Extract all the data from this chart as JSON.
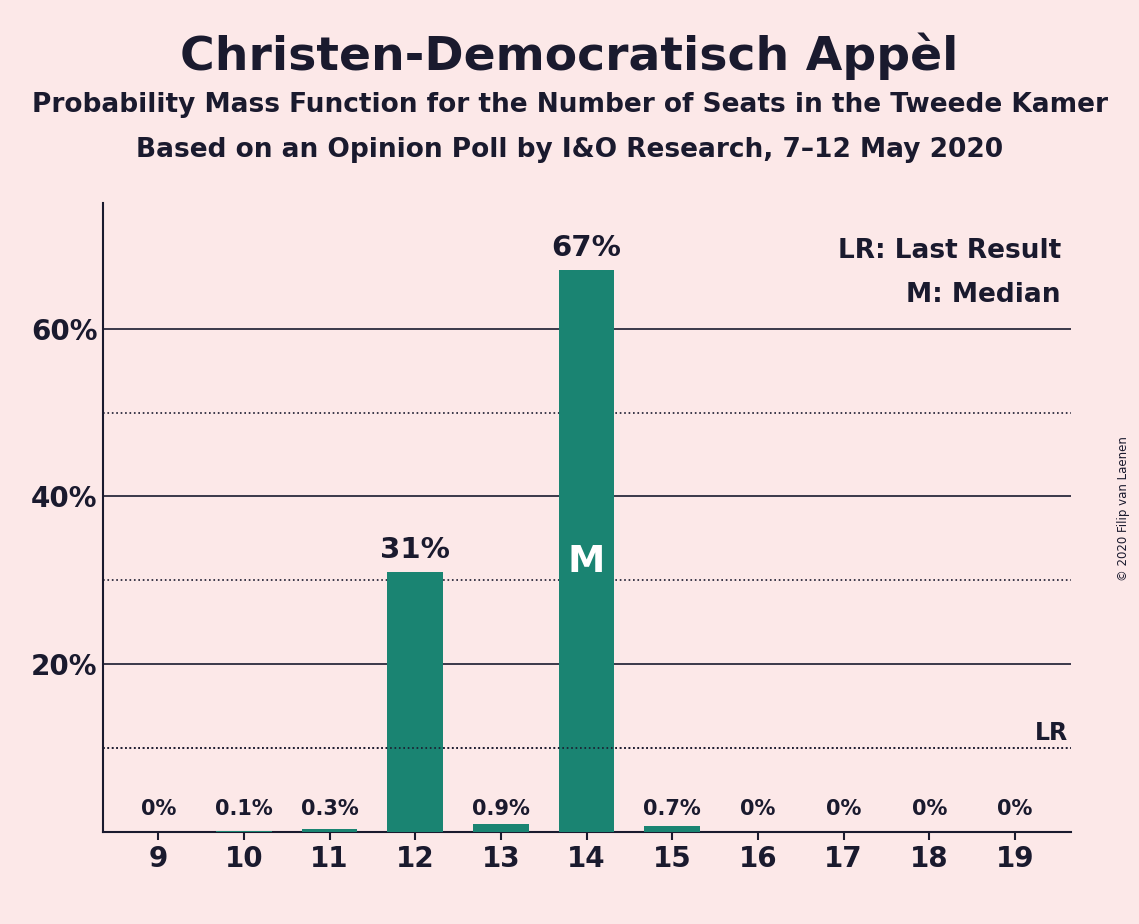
{
  "title": "Christen-Democratisch Appèl",
  "subtitle1": "Probability Mass Function for the Number of Seats in the Tweede Kamer",
  "subtitle2": "Based on an Opinion Poll by I&O Research, 7–12 May 2020",
  "copyright": "© 2020 Filip van Laenen",
  "categories": [
    9,
    10,
    11,
    12,
    13,
    14,
    15,
    16,
    17,
    18,
    19
  ],
  "values": [
    0.0,
    0.1,
    0.3,
    31.0,
    0.9,
    67.0,
    0.7,
    0.0,
    0.0,
    0.0,
    0.0
  ],
  "bar_color": "#1a8472",
  "background_color": "#fce8e8",
  "text_color": "#1a1a2e",
  "median_seat": 14,
  "last_result_pct": 10.0,
  "ytick_labels": [
    "20%",
    "40%",
    "60%"
  ],
  "ytick_vals": [
    20,
    40,
    60
  ],
  "solid_lines": [
    20,
    40,
    60
  ],
  "dotted_lines": [
    10,
    30,
    50
  ],
  "ylim": [
    0,
    75
  ],
  "legend_lr": "LR: Last Result",
  "legend_m": "M: Median",
  "title_fontsize": 34,
  "subtitle_fontsize": 19,
  "label_fontsize": 17,
  "tick_fontsize": 20,
  "legend_fontsize": 19
}
